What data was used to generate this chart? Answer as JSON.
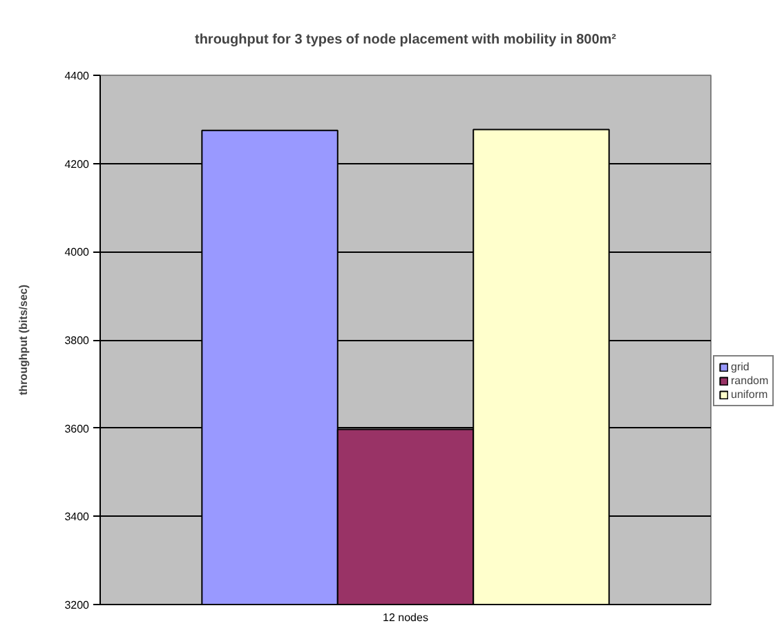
{
  "chart_data": {
    "type": "bar",
    "title": "throughput for 3 types of node placement with mobility in 800m²",
    "ylabel": "throughput (bits/sec)",
    "categories": [
      "12 nodes"
    ],
    "series": [
      {
        "name": "grid",
        "color": "#9999ff",
        "values": [
          4275
        ]
      },
      {
        "name": "random",
        "color": "#993366",
        "values": [
          3597
        ]
      },
      {
        "name": "uniform",
        "color": "#ffffcc",
        "values": [
          4277
        ]
      }
    ],
    "ylim": [
      3200,
      4400
    ],
    "yticks": [
      3200,
      3400,
      3600,
      3800,
      4000,
      4200,
      4400
    ],
    "grid": "y",
    "legend": "right"
  }
}
